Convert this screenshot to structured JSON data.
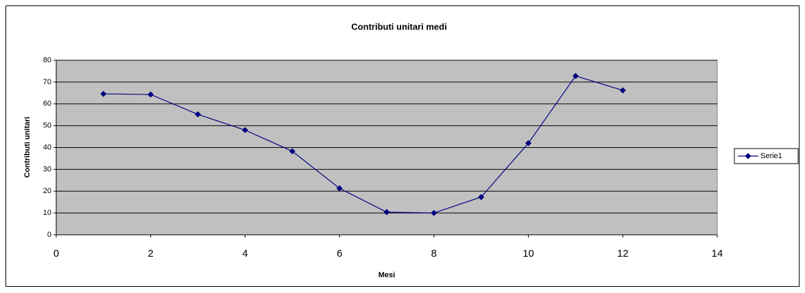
{
  "chart_data": {
    "type": "line",
    "title": "Contributi unitari medi",
    "xlabel": "Mesi",
    "ylabel": "Contributi unitari",
    "x": [
      1,
      2,
      3,
      4,
      5,
      6,
      7,
      8,
      9,
      10,
      11,
      12
    ],
    "series": [
      {
        "name": "Serie1",
        "color": "#000080",
        "values": [
          64.6,
          64.3,
          55.2,
          48,
          38.3,
          21.3,
          10.4,
          10,
          17.3,
          42,
          72.8,
          66.2
        ]
      }
    ],
    "xlim": [
      0,
      14
    ],
    "xticks": [
      0,
      2,
      4,
      6,
      8,
      10,
      12,
      14
    ],
    "ylim": [
      0,
      80
    ],
    "yticks": [
      0,
      10,
      20,
      30,
      40,
      50,
      60,
      70,
      80
    ],
    "grid": true,
    "legend": "right",
    "plot_color": "#c0c0c0"
  }
}
